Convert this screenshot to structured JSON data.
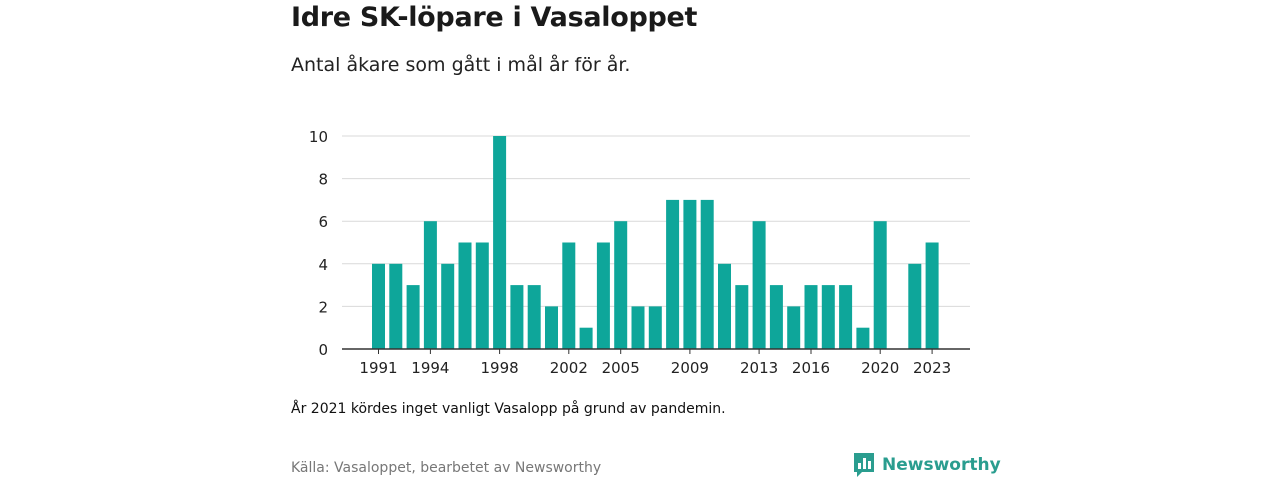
{
  "header": {
    "title": "Idre SK-löpare i Vasaloppet",
    "subtitle": "Antal åkare som gått i mål år för år."
  },
  "footer": {
    "note": "År 2021 kördes inget vanligt Vasalopp på grund av pandemin.",
    "source": "Källa: Vasaloppet, bearbetet av Newsworthy",
    "brand": "Newsworthy"
  },
  "colors": {
    "bar": "#0ea69a",
    "grid": "#d9d9d9",
    "axis": "#333333",
    "brand": "#2a9d8f"
  },
  "chart_data": {
    "type": "bar",
    "title": "",
    "xlabel": "",
    "ylabel": "",
    "ylim": [
      0,
      10
    ],
    "yticks": [
      0,
      2,
      4,
      6,
      8,
      10
    ],
    "grid": true,
    "xticks": [
      "1991",
      "1994",
      "1998",
      "2002",
      "2005",
      "2009",
      "2013",
      "2016",
      "2020",
      "2023"
    ],
    "categories": [
      "1991",
      "1992",
      "1993",
      "1994",
      "1995",
      "1996",
      "1997",
      "1998",
      "1999",
      "2000",
      "2001",
      "2002",
      "2003",
      "2004",
      "2005",
      "2006",
      "2007",
      "2008",
      "2009",
      "2010",
      "2011",
      "2012",
      "2013",
      "2014",
      "2015",
      "2016",
      "2017",
      "2018",
      "2019",
      "2020",
      "2021",
      "2022",
      "2023"
    ],
    "values": [
      4,
      4,
      3,
      6,
      4,
      5,
      5,
      10,
      3,
      3,
      2,
      5,
      1,
      5,
      6,
      2,
      2,
      7,
      7,
      7,
      4,
      3,
      6,
      3,
      2,
      3,
      3,
      3,
      1,
      6,
      null,
      4,
      5
    ]
  }
}
